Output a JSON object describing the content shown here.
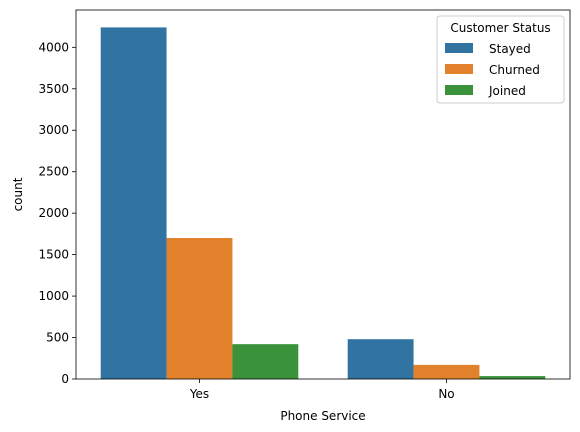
{
  "chart_data": {
    "type": "bar",
    "title": "",
    "xlabel": "Phone Service",
    "ylabel": "count",
    "categories": [
      "Yes",
      "No"
    ],
    "series": [
      {
        "name": "Stayed",
        "color": "#3274a1",
        "values": [
          4240,
          480
        ]
      },
      {
        "name": "Churned",
        "color": "#e1812c",
        "values": [
          1700,
          170
        ]
      },
      {
        "name": "Joined",
        "color": "#3a923a",
        "values": [
          420,
          35
        ]
      }
    ],
    "ylim": [
      0,
      4450
    ],
    "yticks": [
      0,
      500,
      1000,
      1500,
      2000,
      2500,
      3000,
      3500,
      4000
    ],
    "grid": false,
    "legend": {
      "title": "Customer Status",
      "placement": "top-right"
    }
  }
}
